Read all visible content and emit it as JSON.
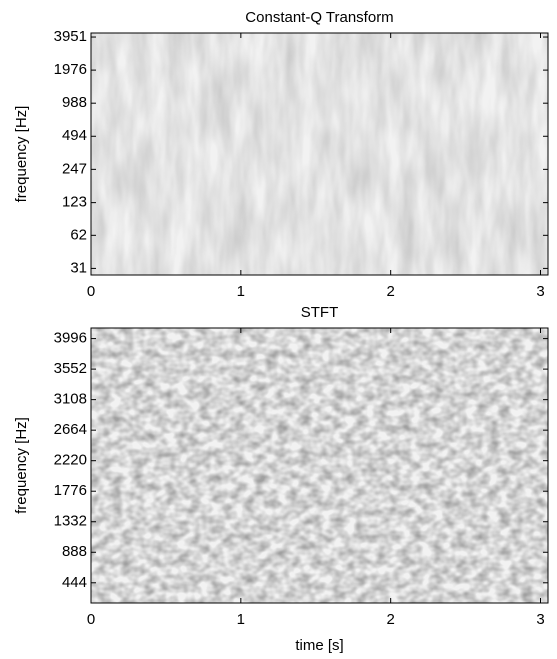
{
  "chart_data": [
    {
      "type": "spectrogram",
      "title": "Constant-Q Transform",
      "ylabel": "frequency [Hz]",
      "xlim": [
        0,
        3.05
      ],
      "xticks": [
        0,
        1,
        2,
        3
      ],
      "yscale": "log",
      "ylim": [
        27,
        4300
      ],
      "yticks": [
        31,
        62,
        123,
        247,
        494,
        988,
        1976,
        3951
      ]
    },
    {
      "type": "spectrogram",
      "title": "STFT",
      "ylabel": "frequency [Hz]",
      "xlabel": "time [s]",
      "xlim": [
        0,
        3.05
      ],
      "xticks": [
        0,
        1,
        2,
        3
      ],
      "yscale": "linear",
      "ylim": [
        150,
        4150
      ],
      "yticks": [
        444,
        888,
        1332,
        1776,
        2220,
        2664,
        3108,
        3552,
        3996
      ]
    }
  ]
}
